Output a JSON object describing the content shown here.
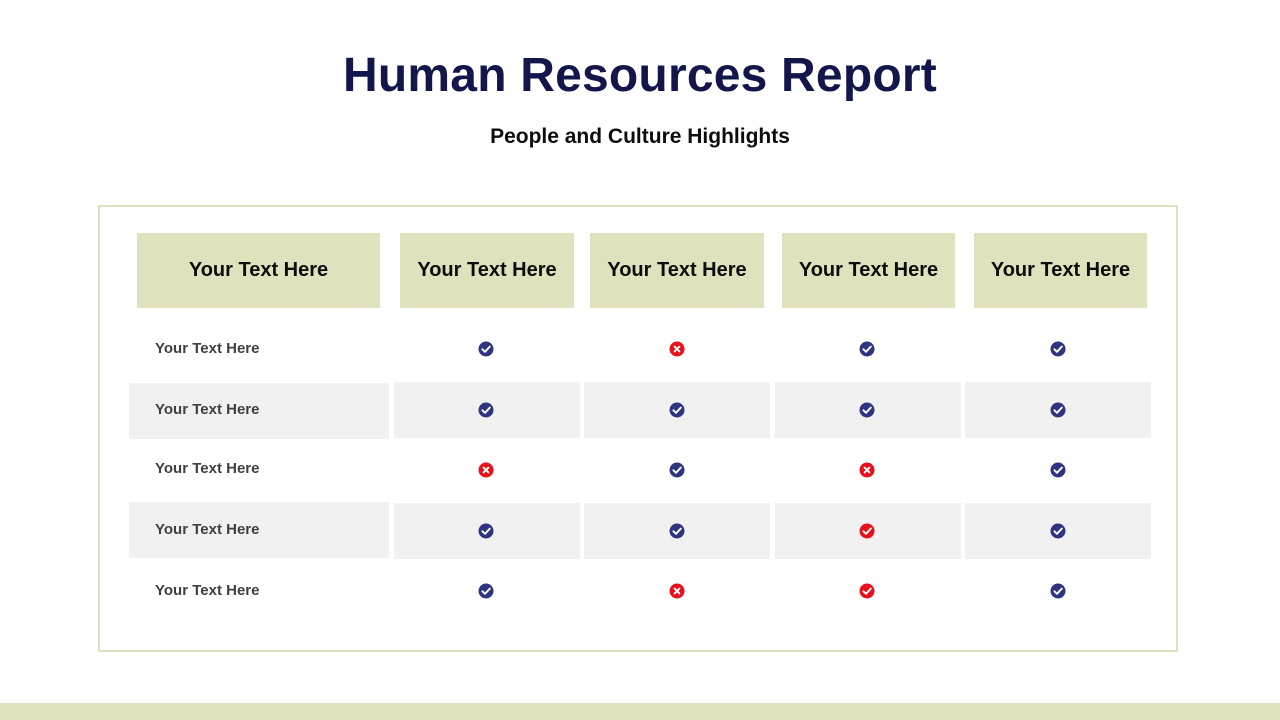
{
  "title": "Human Resources Report",
  "subtitle": "People and Culture Highlights",
  "colors": {
    "accent": "#e0e2bd",
    "title": "#12164a",
    "check": "#2e3480",
    "cross": "#e8101a",
    "band": "#f1f1f1"
  },
  "table": {
    "headers": [
      "Your Text Here",
      "Your Text Here",
      "Your Text Here",
      "Your Text Here",
      "Your Text Here"
    ],
    "rows": [
      {
        "label": "Your Text Here",
        "cells": [
          "check",
          "cross",
          "check",
          "check"
        ]
      },
      {
        "label": "Your Text Here",
        "cells": [
          "check",
          "check",
          "check",
          "check"
        ]
      },
      {
        "label": "Your Text Here",
        "cells": [
          "cross",
          "check",
          "cross",
          "check"
        ]
      },
      {
        "label": "Your Text Here",
        "cells": [
          "check",
          "check",
          "red-check",
          "check"
        ]
      },
      {
        "label": "Your Text Here",
        "cells": [
          "check",
          "cross",
          "red-check",
          "check"
        ]
      }
    ]
  }
}
